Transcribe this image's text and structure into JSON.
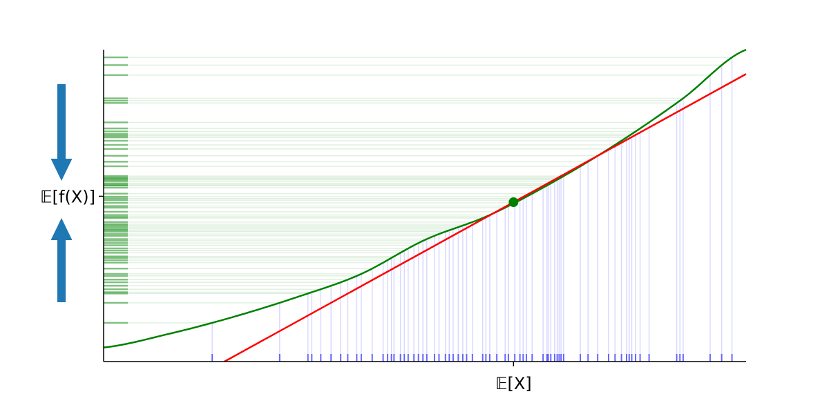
{
  "chart_data": {
    "type": "line",
    "title": "",
    "xlabel": "",
    "ylabel": "",
    "xlim": [
      0,
      1
    ],
    "ylim": [
      0,
      1
    ],
    "grid": false,
    "legend": "none",
    "x_tick_label": "𝔼[X]",
    "y_tick_label": "𝔼[f(X)]",
    "expected_x": 0.638,
    "expected_fx": 0.53,
    "mean_point": {
      "x": 0.638,
      "y": 0.511
    },
    "series": [
      {
        "kind": "convex-curve",
        "color": "#008000",
        "points": [
          [
            0,
            0.045
          ],
          [
            0.1,
            0.088
          ],
          [
            0.2,
            0.142
          ],
          [
            0.3,
            0.206
          ],
          [
            0.4,
            0.28
          ],
          [
            0.5,
            0.39
          ],
          [
            0.6,
            0.469
          ],
          [
            0.7,
            0.576
          ],
          [
            0.8,
            0.7
          ],
          [
            0.9,
            0.841
          ],
          [
            1.0,
            1.0
          ]
        ]
      },
      {
        "kind": "tangent-line",
        "color": "#ff0000",
        "points": [
          [
            0.188,
            0.0
          ],
          [
            1.0,
            0.922
          ]
        ]
      }
    ],
    "x_samples": [
      0.169,
      0.274,
      0.318,
      0.324,
      0.338,
      0.354,
      0.369,
      0.38,
      0.394,
      0.401,
      0.418,
      0.435,
      0.442,
      0.448,
      0.452,
      0.462,
      0.468,
      0.474,
      0.483,
      0.49,
      0.497,
      0.503,
      0.515,
      0.522,
      0.532,
      0.538,
      0.544,
      0.552,
      0.559,
      0.565,
      0.574,
      0.59,
      0.595,
      0.601,
      0.612,
      0.625,
      0.63,
      0.64,
      0.648,
      0.653,
      0.658,
      0.667,
      0.684,
      0.69,
      0.692,
      0.696,
      0.702,
      0.706,
      0.709,
      0.712,
      0.716,
      0.742,
      0.754,
      0.769,
      0.786,
      0.796,
      0.806,
      0.814,
      0.818,
      0.822,
      0.828,
      0.835,
      0.849,
      0.892,
      0.897,
      0.902,
      0.944,
      0.962,
      0.978
    ],
    "colors": {
      "curve": "#008000",
      "tangent": "#ff0000",
      "x_rug": "#0000ff",
      "fx_rug": "#008000",
      "arrow": "#1f77b4",
      "point": "#008000",
      "axis": "#000000"
    }
  }
}
